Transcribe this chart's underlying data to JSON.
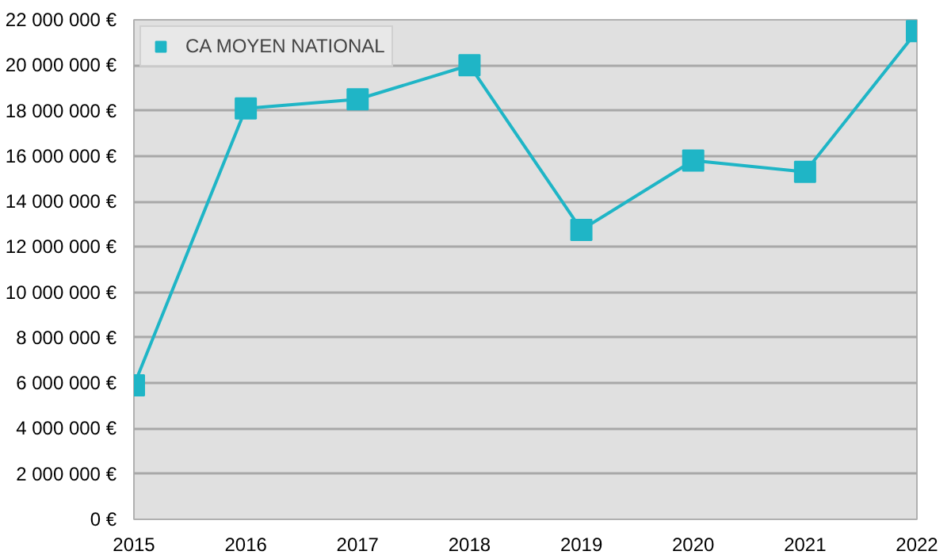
{
  "chart_data": {
    "type": "line",
    "x": [
      2015,
      2016,
      2017,
      2018,
      2019,
      2020,
      2021,
      2022
    ],
    "series": [
      {
        "name": "CA MOYEN NATIONAL",
        "color": "#1fb5c6",
        "values": [
          5900000,
          18100000,
          18500000,
          20000000,
          12750000,
          15800000,
          15300000,
          21500000
        ]
      }
    ],
    "xlim": [
      2015,
      2022
    ],
    "xticks": [
      2015,
      2016,
      2017,
      2018,
      2019,
      2020,
      2021,
      2022
    ],
    "ylim": [
      0,
      22000000
    ],
    "yticks": [
      {
        "value": 0,
        "label": "0 €"
      },
      {
        "value": 2000000,
        "label": "2 000 000 €"
      },
      {
        "value": 4000000,
        "label": "4 000 000 €"
      },
      {
        "value": 6000000,
        "label": "6 000 000 €"
      },
      {
        "value": 8000000,
        "label": "8 000 000 €"
      },
      {
        "value": 10000000,
        "label": "10 000 000 €"
      },
      {
        "value": 12000000,
        "label": "12 000 000 €"
      },
      {
        "value": 14000000,
        "label": "14 000 000 €"
      },
      {
        "value": 16000000,
        "label": "16 000 000 €"
      },
      {
        "value": 18000000,
        "label": "18 000 000 €"
      },
      {
        "value": 20000000,
        "label": "20 000 000 €"
      },
      {
        "value": 22000000,
        "label": "22 000 000 €"
      }
    ],
    "grid": "y",
    "legend": "top left",
    "marker": "square",
    "line_style": "solid"
  }
}
